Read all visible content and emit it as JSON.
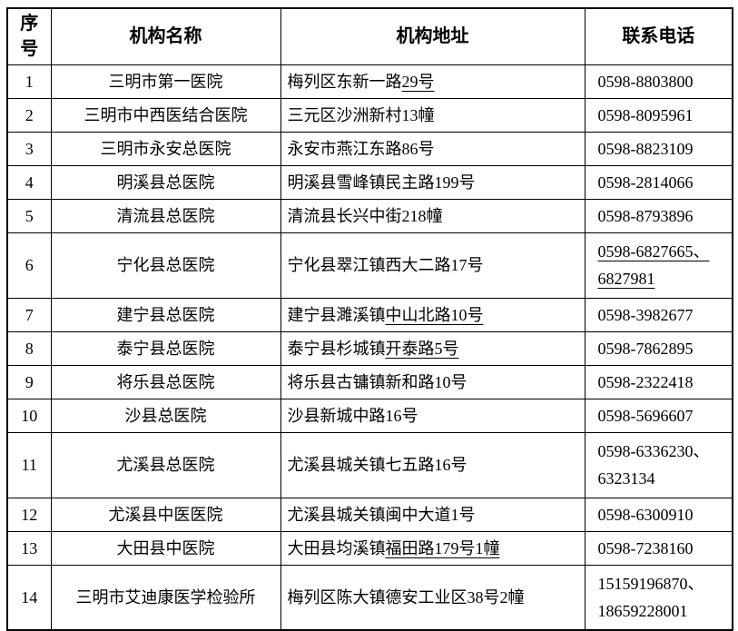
{
  "colors": {
    "border": "#000000",
    "text": "#000000",
    "background": "#ffffff"
  },
  "table": {
    "headers": [
      "序\n号",
      "机构名称",
      "机构地址",
      "联系电话"
    ],
    "rows": [
      {
        "no": "1",
        "name": "三明市第一医院",
        "address": [
          {
            "text": "梅列区东新一路",
            "underline": false
          },
          {
            "text": "29号",
            "underline": true
          }
        ],
        "phone": [
          {
            "text": "0598-8803800",
            "underline": false
          }
        ],
        "tall": false
      },
      {
        "no": "2",
        "name": "三明市中西医结合医院",
        "address": [
          {
            "text": "三元区沙洲新村13幢",
            "underline": false
          }
        ],
        "phone": [
          {
            "text": "0598-8095961",
            "underline": false
          }
        ],
        "tall": false
      },
      {
        "no": "3",
        "name": "三明市永安总医院",
        "address": [
          {
            "text": "永安市燕江东路86号",
            "underline": false
          }
        ],
        "phone": [
          {
            "text": "0598-8823109",
            "underline": false
          }
        ],
        "tall": false
      },
      {
        "no": "4",
        "name": "明溪县总医院",
        "address": [
          {
            "text": "明溪县雪峰镇民主路199号",
            "underline": false
          }
        ],
        "phone": [
          {
            "text": "0598-2814066",
            "underline": false
          }
        ],
        "tall": false
      },
      {
        "no": "5",
        "name": "清流县总医院",
        "address": [
          {
            "text": "清流县长兴中街218幢",
            "underline": false
          }
        ],
        "phone": [
          {
            "text": "0598-8793896",
            "underline": false
          }
        ],
        "tall": false
      },
      {
        "no": "6",
        "name": "宁化县总医院",
        "address": [
          {
            "text": "宁化县翠江镇西大二路17号",
            "underline": false
          }
        ],
        "phone": [
          {
            "text": "0598-6827665、\n6827981",
            "underline": true
          }
        ],
        "tall": true
      },
      {
        "no": "7",
        "name": "建宁县总医院",
        "address": [
          {
            "text": "建宁县濉溪镇",
            "underline": false
          },
          {
            "text": "中山北路10号",
            "underline": true
          }
        ],
        "phone": [
          {
            "text": "0598-3982677",
            "underline": false
          }
        ],
        "tall": false
      },
      {
        "no": "8",
        "name": "泰宁县总医院",
        "address": [
          {
            "text": "泰宁县杉城镇",
            "underline": false
          },
          {
            "text": "开泰路5号",
            "underline": true
          }
        ],
        "phone": [
          {
            "text": "0598-7862895",
            "underline": false
          }
        ],
        "tall": false
      },
      {
        "no": "9",
        "name": "将乐县总医院",
        "address": [
          {
            "text": "将乐县古镛镇新和路10号",
            "underline": false
          }
        ],
        "phone": [
          {
            "text": "0598-2322418",
            "underline": false
          }
        ],
        "tall": false
      },
      {
        "no": "10",
        "name": "沙县总医院",
        "address": [
          {
            "text": "沙县新城中路16号",
            "underline": false
          }
        ],
        "phone": [
          {
            "text": "0598-5696607",
            "underline": false
          }
        ],
        "tall": false
      },
      {
        "no": "11",
        "name": "尤溪县总医院",
        "address": [
          {
            "text": "尤溪县城关镇七五路16号",
            "underline": false
          }
        ],
        "phone": [
          {
            "text": "0598-6336230、\n6323134",
            "underline": false
          }
        ],
        "tall": true
      },
      {
        "no": "12",
        "name": "尤溪县中医医院",
        "address": [
          {
            "text": "尤溪县城关镇闽中大道1号",
            "underline": false
          }
        ],
        "phone": [
          {
            "text": "0598-6300910",
            "underline": false
          }
        ],
        "tall": false
      },
      {
        "no": "13",
        "name": "大田县中医院",
        "address": [
          {
            "text": "大田县均溪镇",
            "underline": false
          },
          {
            "text": "福田路179号1幢",
            "underline": true
          }
        ],
        "phone": [
          {
            "text": "0598-7238160",
            "underline": false
          }
        ],
        "tall": false
      },
      {
        "no": "14",
        "name": "三明市艾迪康医学检验所",
        "address": [
          {
            "text": "梅列区陈大镇德安工业区38号2幢",
            "underline": false
          }
        ],
        "phone": [
          {
            "text": "15159196870、\n18659228001",
            "underline": false
          }
        ],
        "tall": true
      }
    ]
  }
}
